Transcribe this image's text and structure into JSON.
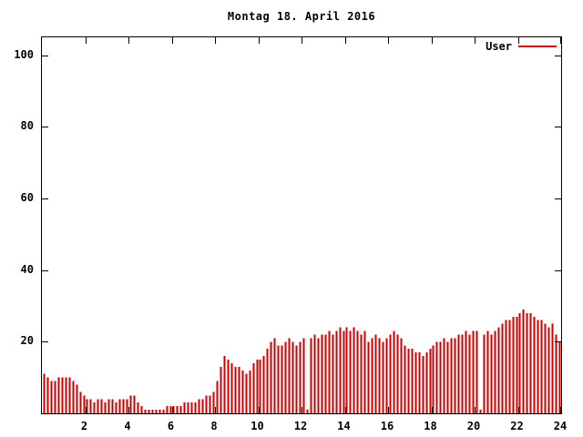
{
  "chart_data": {
    "type": "bar",
    "title": "Montag 18. April 2016",
    "series_name": "User",
    "bar_color": "#cc0000",
    "axis_color": "#000000",
    "background_color": "#ffffff",
    "legend_position": "top-right-inside",
    "grid": false,
    "x_unit": "hour-of-day",
    "x_start_hour": 0,
    "x_step_minutes": 10,
    "xlim": [
      0,
      24
    ],
    "ylim": [
      0,
      105
    ],
    "x_ticks": [
      2,
      4,
      6,
      8,
      10,
      12,
      14,
      16,
      18,
      20,
      22,
      24
    ],
    "y_ticks": [
      20,
      40,
      60,
      80,
      100
    ],
    "values": [
      11,
      10,
      9,
      9,
      10,
      10,
      10,
      10,
      9,
      8,
      6,
      5,
      4,
      4,
      3,
      4,
      4,
      3,
      4,
      4,
      3,
      4,
      4,
      4,
      5,
      5,
      3,
      2,
      1,
      1,
      1,
      1,
      1,
      1,
      2,
      2,
      2,
      2,
      2,
      3,
      3,
      3,
      3,
      4,
      4,
      5,
      5,
      6,
      9,
      13,
      16,
      15,
      14,
      13,
      13,
      12,
      11,
      12,
      14,
      15,
      15,
      16,
      18,
      20,
      21,
      19,
      19,
      20,
      21,
      20,
      19,
      20,
      21,
      1,
      21,
      22,
      21,
      22,
      22,
      23,
      22,
      23,
      24,
      23,
      24,
      23,
      24,
      23,
      22,
      23,
      20,
      21,
      22,
      21,
      20,
      21,
      22,
      23,
      22,
      21,
      19,
      18,
      18,
      17,
      17,
      16,
      17,
      18,
      19,
      20,
      20,
      21,
      20,
      21,
      21,
      22,
      22,
      23,
      22,
      23,
      23,
      1,
      22,
      23,
      22,
      23,
      24,
      25,
      26,
      26,
      27,
      27,
      28,
      29,
      28,
      28,
      27,
      26,
      26,
      25,
      24,
      25,
      22,
      20
    ]
  }
}
